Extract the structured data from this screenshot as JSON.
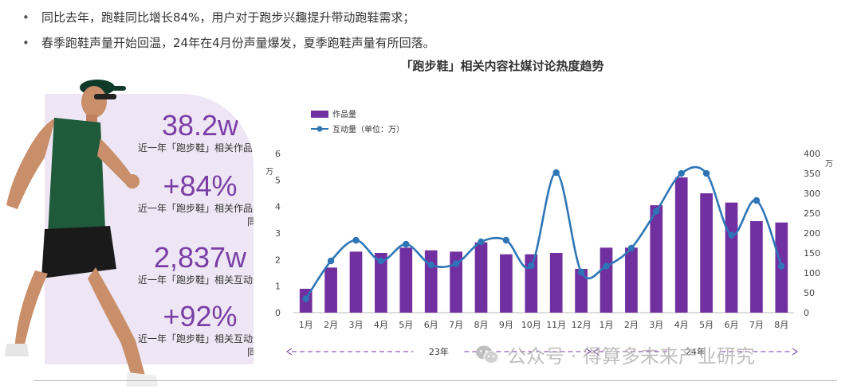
{
  "bullets": [
    "同比去年，跑鞋同比增长84%，用户对于跑步兴趣提升带动跑鞋需求；",
    "春季跑鞋声量开始回温，24年在4月份声量爆发，夏季跑鞋声量有所回落。"
  ],
  "bullet_marker": "•",
  "stats": [
    {
      "value": "38.2w",
      "caption1": "近一年「跑步鞋」相关作品量",
      "caption2": ""
    },
    {
      "value": "+84%",
      "caption1": "近一年「跑步鞋」相关作品量",
      "caption2": "同比"
    },
    {
      "value": "2,837w",
      "caption1": "近一年「跑步鞋」相关互动量",
      "caption2": ""
    },
    {
      "value": "+92%",
      "caption1": "近一年「跑步鞋」相关互动量",
      "caption2": "同比"
    }
  ],
  "watermark": "公众号 · 得算多未来产业研究",
  "chart_data": {
    "type": "bar",
    "title": "「跑步鞋」相关内容社媒讨论热度趋势",
    "categories": [
      "1月",
      "2月",
      "3月",
      "4月",
      "5月",
      "6月",
      "7月",
      "8月",
      "9月",
      "10月",
      "11月",
      "12月",
      "1月",
      "2月",
      "3月",
      "4月",
      "5月",
      "6月",
      "7月",
      "8月"
    ],
    "year_labels": [
      {
        "label": "23年",
        "from": 0,
        "to": 11
      },
      {
        "label": "24年",
        "from": 12,
        "to": 19
      }
    ],
    "series": [
      {
        "name": "作品量",
        "type": "bar",
        "axis": "left",
        "color": "#7030a0",
        "values": [
          0.9,
          1.7,
          2.3,
          2.25,
          2.45,
          2.35,
          2.3,
          2.65,
          2.2,
          2.2,
          2.25,
          1.65,
          2.45,
          2.45,
          4.05,
          5.1,
          4.5,
          4.15,
          3.45,
          3.4
        ]
      },
      {
        "name": "互动量（单位：万）",
        "type": "line",
        "axis": "right",
        "color": "#2e75b6",
        "values": [
          35,
          130,
          182,
          130,
          172,
          120,
          123,
          178,
          182,
          118,
          352,
          102,
          117,
          162,
          255,
          350,
          350,
          195,
          282,
          117
        ]
      }
    ],
    "left_axis": {
      "min": 0,
      "max": 6,
      "ticks": [
        0,
        1,
        2,
        3,
        4,
        5,
        6
      ],
      "unit": "万"
    },
    "right_axis": {
      "min": 0,
      "max": 400,
      "ticks": [
        0,
        50,
        100,
        150,
        200,
        250,
        300,
        350,
        400
      ],
      "unit": "万"
    },
    "legend_position": "top-left",
    "grid": false
  }
}
